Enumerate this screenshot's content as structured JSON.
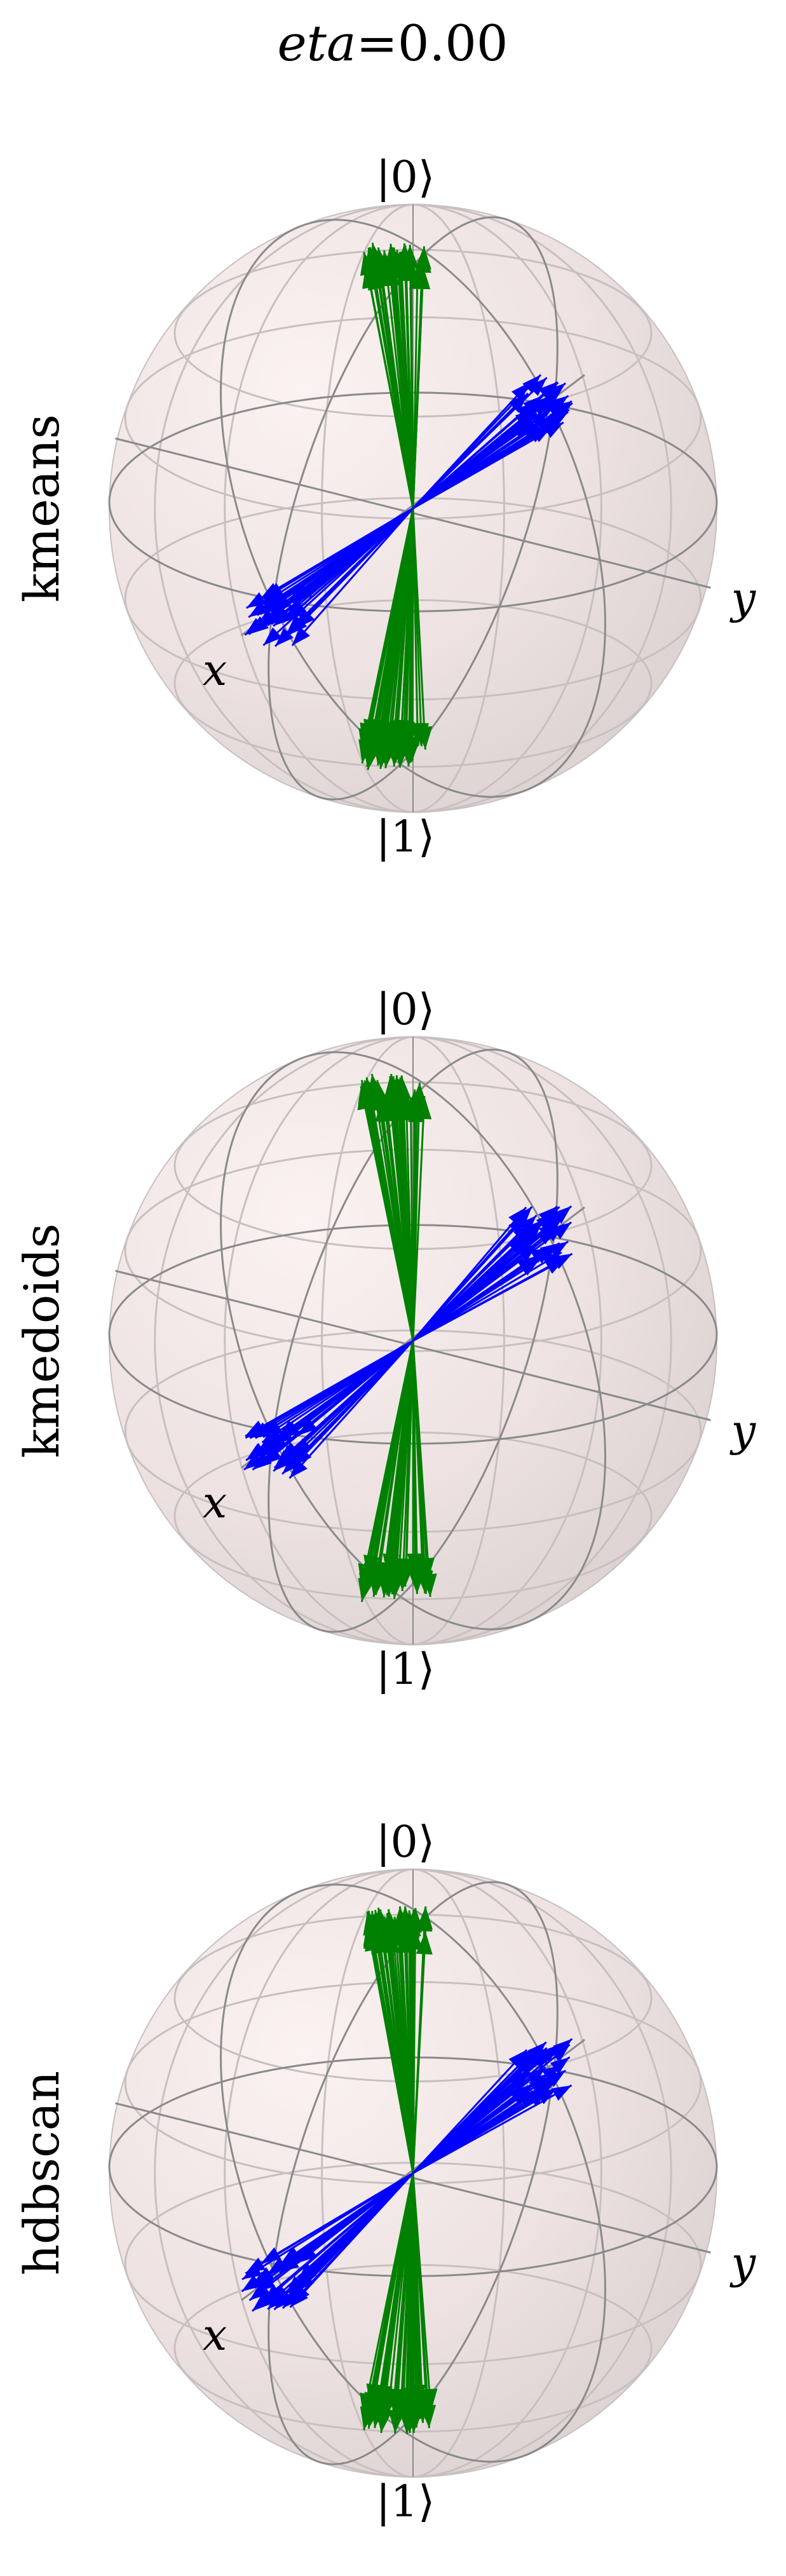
{
  "title": {
    "var": "eta",
    "eq": "=",
    "value": "0.00"
  },
  "panels": [
    {
      "method": "kmeans"
    },
    {
      "method": "kmedoids"
    },
    {
      "method": "hdbscan"
    }
  ],
  "axis_labels": {
    "top": "|0⟩",
    "bottom": "|1⟩",
    "x": "x",
    "y": "y"
  },
  "colors": {
    "cluster_z": "#008000",
    "cluster_xy": "#0000ff",
    "sphere_fill": "#f1e6e6",
    "wire": "#8a8a8a",
    "wire_faint": "#c8c0c0"
  }
}
